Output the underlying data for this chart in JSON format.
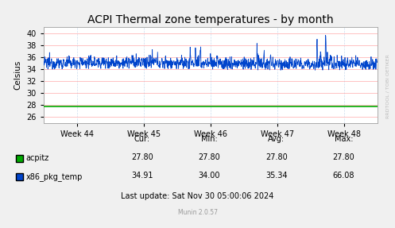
{
  "title": "ACPI Thermal zone temperatures - by month",
  "ylabel": "Celsius",
  "ylim": [
    25,
    41
  ],
  "yticks": [
    26,
    28,
    30,
    32,
    34,
    36,
    38,
    40
  ],
  "xtick_labels": [
    "Week 44",
    "Week 45",
    "Week 46",
    "Week 47",
    "Week 48"
  ],
  "xtick_positions": [
    0.1,
    0.3,
    0.5,
    0.7,
    0.9
  ],
  "acpitz_value": 27.8,
  "acpitz_color": "#00aa00",
  "x86_color": "#0044cc",
  "x86_min": 34.0,
  "x86_max": 66.08,
  "x86_avg": 35.34,
  "x86_cur": 34.91,
  "acpitz_cur": 27.8,
  "acpitz_min": 27.8,
  "acpitz_avg": 27.8,
  "acpitz_max": 27.8,
  "bg_color": "#f0f0f0",
  "plot_bg_color": "#ffffff",
  "grid_h_color": "#ffaaaa",
  "grid_v_color": "#ccddee",
  "title_fontsize": 10,
  "label_fontsize": 7.5,
  "tick_fontsize": 7,
  "legend_fontsize": 7,
  "watermark": "Munin 2.0.57",
  "last_update": "Last update: Sat Nov 30 05:00:06 2024",
  "right_label": "RRDTOOL / TOBI OETIKER"
}
